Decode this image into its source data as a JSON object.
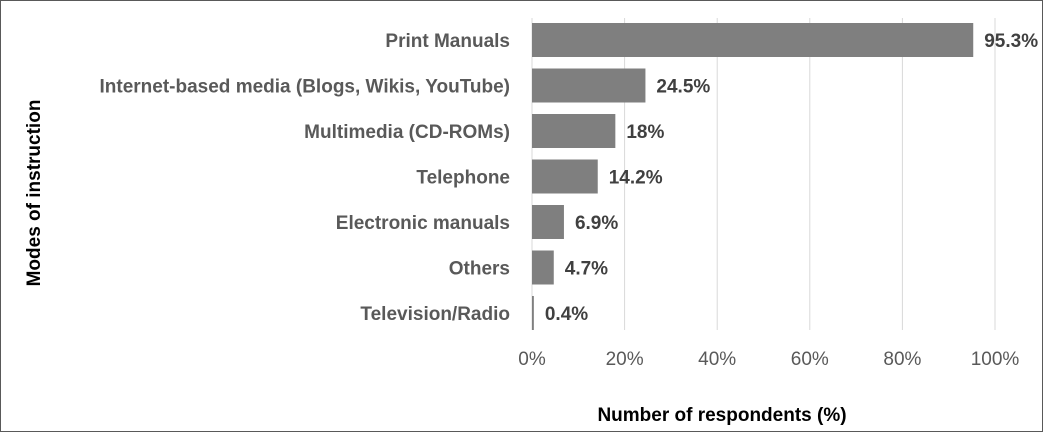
{
  "chart_data": {
    "type": "bar",
    "orientation": "horizontal",
    "title": "",
    "xlabel": "Number of respondents (%)",
    "ylabel": "Modes of instruction",
    "categories": [
      "Print Manuals",
      "Internet-based media (Blogs, Wikis, YouTube)",
      "Multimedia (CD-ROMs)",
      "Telephone",
      "Electronic manuals",
      "Others",
      "Television/Radio"
    ],
    "values": [
      95.3,
      24.5,
      18,
      14.2,
      6.9,
      4.7,
      0.4
    ],
    "value_labels": [
      "95.3%",
      "24.5%",
      "18%",
      "14.2%",
      "6.9%",
      "4.7%",
      "0.4%"
    ],
    "xlim": [
      0,
      100
    ],
    "x_ticks": [
      0,
      20,
      40,
      60,
      80,
      100
    ],
    "x_tick_labels": [
      "0%",
      "20%",
      "40%",
      "60%",
      "80%",
      "100%"
    ],
    "grid": true,
    "legend": "none",
    "colors": {
      "bar": "#7f7f7f",
      "grid": "#d9d9d9",
      "border": "#595959"
    }
  }
}
